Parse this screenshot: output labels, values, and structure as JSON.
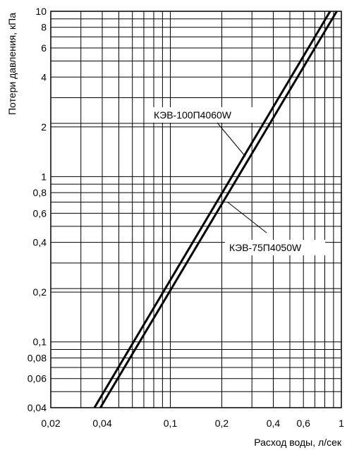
{
  "chart_data": {
    "type": "line",
    "xscale": "log",
    "yscale": "log",
    "xlim": [
      0.02,
      1
    ],
    "ylim": [
      0.04,
      10
    ],
    "xlabel": "Расход воды, л/сек",
    "ylabel": "Потери давления, кПа",
    "grid": true,
    "legend": "none",
    "xticks": [
      {
        "value": 0.02,
        "label": "0,02"
      },
      {
        "value": 0.04,
        "label": "0,04"
      },
      {
        "value": 0.1,
        "label": "0,1"
      },
      {
        "value": 0.2,
        "label": "0,2"
      },
      {
        "value": 0.4,
        "label": "0,4"
      },
      {
        "value": 0.6,
        "label": "0,6"
      },
      {
        "value": 1,
        "label": "1"
      }
    ],
    "yticks": [
      {
        "value": 0.04,
        "label": "0,04"
      },
      {
        "value": 0.06,
        "label": "0,06"
      },
      {
        "value": 0.08,
        "label": "0,08"
      },
      {
        "value": 0.1,
        "label": "0,1"
      },
      {
        "value": 0.2,
        "label": "0,2"
      },
      {
        "value": 0.4,
        "label": "0,4"
      },
      {
        "value": 0.6,
        "label": "0,6"
      },
      {
        "value": 0.8,
        "label": "0,8"
      },
      {
        "value": 1,
        "label": "1"
      },
      {
        "value": 2,
        "label": "2"
      },
      {
        "value": 4,
        "label": "4"
      },
      {
        "value": 6,
        "label": "6"
      },
      {
        "value": 8,
        "label": "8"
      },
      {
        "value": 10,
        "label": "10"
      }
    ],
    "series": [
      {
        "name": "КЭВ-100П4060W",
        "x": [
          0.036,
          0.86
        ],
        "y": [
          0.04,
          10
        ]
      },
      {
        "name": "КЭВ-75П4050W",
        "x": [
          0.039,
          0.94
        ],
        "y": [
          0.04,
          10
        ]
      }
    ],
    "colors": {
      "line": "#000000",
      "grid": "#000000",
      "background": "#ffffff"
    }
  }
}
